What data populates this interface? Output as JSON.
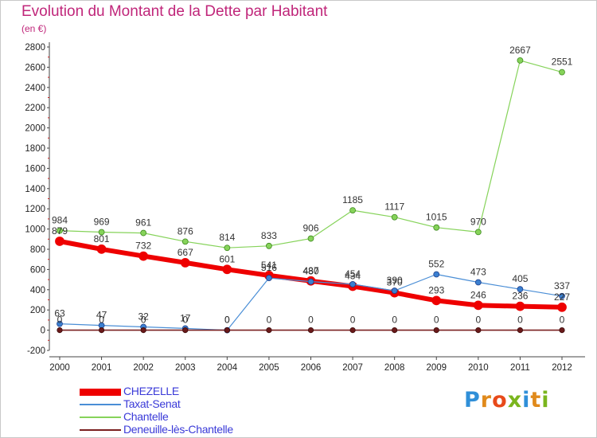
{
  "title": "Evolution du Montant de la Dette par Habitant",
  "unit_label": "(en €)",
  "logo": {
    "text": "Proxiti",
    "letter_colors": [
      "#2f8fd8",
      "#e08a1c",
      "#e84a1a",
      "#7ab51d",
      "#2f8fd8",
      "#e08a1c",
      "#7ab51d"
    ]
  },
  "chart_data": {
    "type": "line",
    "title": "Evolution du Montant de la Dette par Habitant",
    "ylabel": "(en €)",
    "x": [
      "2000",
      "2001",
      "2002",
      "2003",
      "2004",
      "2005",
      "2006",
      "2007",
      "2008",
      "2009",
      "2010",
      "2011",
      "2012"
    ],
    "ylim": [
      -200,
      2800
    ],
    "yticks": [
      -200,
      0,
      200,
      400,
      600,
      800,
      1000,
      1200,
      1400,
      1600,
      1800,
      2000,
      2200,
      2400,
      2600,
      2800
    ],
    "grid": false,
    "legend_position": "bottom-left",
    "series": [
      {
        "name": "CHEZELLE",
        "color": "#ee0000",
        "values": [
          879,
          801,
          732,
          667,
          601,
          541,
          487,
          434,
          370,
          293,
          246,
          236,
          227
        ]
      },
      {
        "name": "Taxat-Senat",
        "color": "#4a8ed6",
        "values": [
          63,
          47,
          32,
          17,
          0,
          516,
          480,
          454,
          390,
          552,
          473,
          405,
          337
        ]
      },
      {
        "name": "Chantelle",
        "color": "#86d35a",
        "values": [
          984,
          969,
          961,
          876,
          814,
          833,
          906,
          1185,
          1117,
          1015,
          970,
          2667,
          2551
        ]
      },
      {
        "name": "Deneuille-lès-Chantelle",
        "color": "#7a2020",
        "values": [
          0,
          0,
          0,
          0,
          0,
          0,
          0,
          0,
          0,
          0,
          0,
          0,
          0
        ]
      }
    ]
  }
}
